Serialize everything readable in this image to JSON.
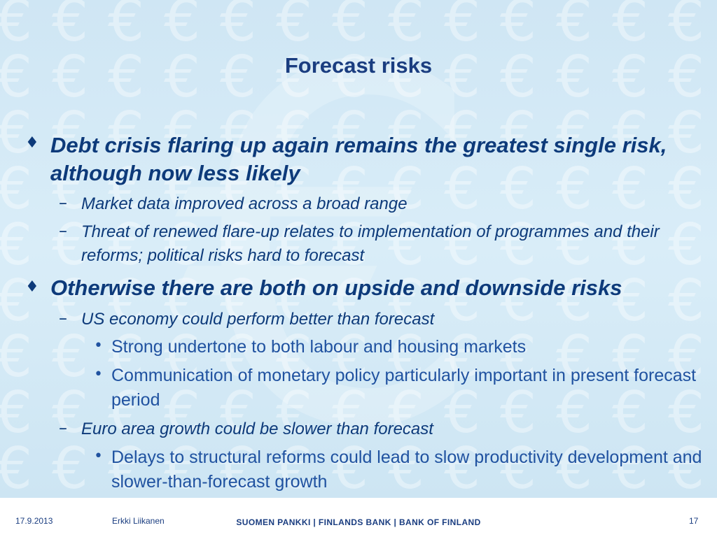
{
  "title": "Forecast risks",
  "bullets": [
    {
      "marker": "♦",
      "text": "Debt crisis flaring up again remains the greatest single risk, although now less likely",
      "subs": [
        {
          "marker": "–",
          "text": "Market data improved across a broad range"
        },
        {
          "marker": "–",
          "text": "Threat of renewed flare-up relates to implementation of programmes and their reforms; political risks hard to forecast"
        }
      ]
    },
    {
      "marker": "♦",
      "text": "Otherwise there are both on upside and downside risks",
      "subs": [
        {
          "marker": "–",
          "text": "US economy could perform better than forecast",
          "items": [
            {
              "marker": "•",
              "text": "Strong undertone to both labour and housing markets"
            },
            {
              "marker": "•",
              "text": "Communication of monetary policy particularly important in present forecast period"
            }
          ]
        },
        {
          "marker": "–",
          "text": "Euro area growth could be slower than forecast",
          "items": [
            {
              "marker": "•",
              "text": "Delays to structural reforms could lead to slow productivity development and slower-than-forecast growth"
            }
          ]
        }
      ]
    }
  ],
  "footer": {
    "date": "17.9.2013",
    "author": "Erkki Liikanen",
    "bank": "SUOMEN PANKKI | FINLANDS BANK | BANK OF FINLAND",
    "page": "17"
  },
  "colors": {
    "title": "#1a3d80",
    "text": "#0d3a7a",
    "sub_bullet_text": "#2052a0",
    "background": "#d6eaf6"
  },
  "icons": {
    "background": "euro-symbol-pattern"
  }
}
